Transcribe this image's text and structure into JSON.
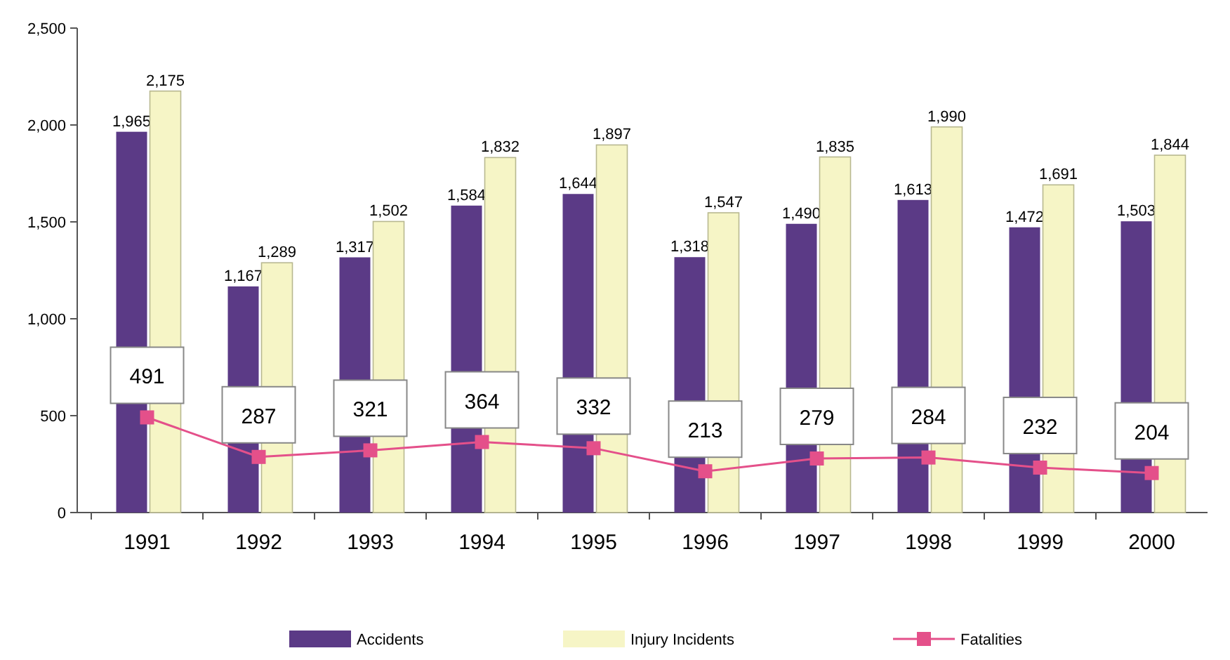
{
  "chart_data": {
    "type": "bar",
    "categories": [
      "1991",
      "1992",
      "1993",
      "1994",
      "1995",
      "1996",
      "1997",
      "1998",
      "1999",
      "2000"
    ],
    "ylim": [
      0,
      2500
    ],
    "yticks": [
      0,
      500,
      {
        "value": 1000,
        "label": "1,000"
      },
      {
        "value": 1500,
        "label": "1,500"
      },
      {
        "value": 2000,
        "label": "2,000"
      },
      {
        "value": 2500,
        "label": "2,500"
      }
    ],
    "grid": false,
    "legend": "bottom",
    "series": [
      {
        "name": "Accidents",
        "color": "#5b3a86",
        "values": [
          1965,
          1167,
          1317,
          1584,
          1644,
          1318,
          1490,
          1613,
          1472,
          1503
        ],
        "value_labels": [
          "1,965",
          "1,167",
          "1,317",
          "1,584",
          "1,644",
          "1,318",
          "1,490",
          "1,613",
          "1,472",
          "1,503"
        ]
      },
      {
        "name": "Injury Incidents",
        "color": "#f6f5c6",
        "values": [
          2175,
          1289,
          1502,
          1832,
          1897,
          1547,
          1835,
          1990,
          1691,
          1844
        ],
        "value_labels": [
          "2,175",
          "1,289",
          "1,502",
          "1,832",
          "1,897",
          "1,547",
          "1,835",
          "1,990",
          "1,691",
          "1,844"
        ]
      },
      {
        "name": "Fatalities",
        "type": "line",
        "color": "#e4508a",
        "marker": "square",
        "values": [
          491,
          287,
          321,
          364,
          332,
          213,
          279,
          284,
          232,
          204
        ],
        "value_labels": [
          "491",
          "287",
          "321",
          "364",
          "332",
          "213",
          "279",
          "284",
          "232",
          "204"
        ]
      }
    ]
  }
}
